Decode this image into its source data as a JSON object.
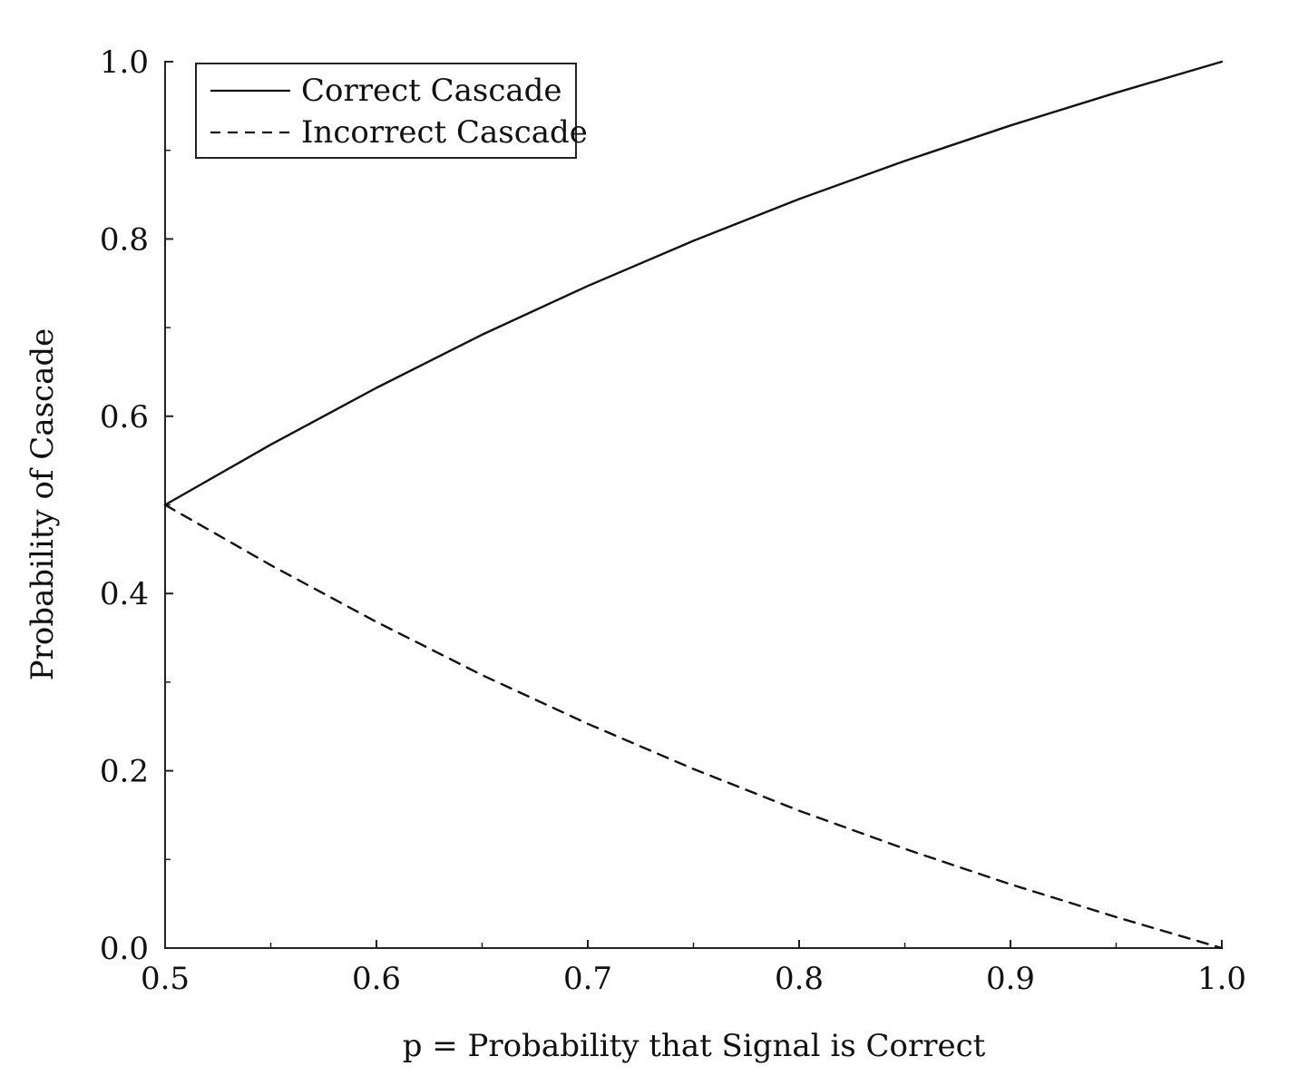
{
  "chart_data": {
    "type": "line",
    "title": "",
    "xlabel": "p = Probability that Signal is Correct",
    "ylabel": "Probability of Cascade",
    "xlim": [
      0.5,
      1.0
    ],
    "ylim": [
      0.0,
      1.0
    ],
    "x_ticks": [
      "0.5",
      "0.6",
      "0.7",
      "0.8",
      "0.9",
      "1.0"
    ],
    "y_ticks": [
      "0.0",
      "0.2",
      "0.4",
      "0.6",
      "0.8",
      "1.0"
    ],
    "grid": false,
    "legend_position": "top-left",
    "x": [
      0.5,
      0.55,
      0.6,
      0.65,
      0.7,
      0.75,
      0.8,
      0.85,
      0.9,
      0.95,
      1.0
    ],
    "series": [
      {
        "name": "Correct Cascade",
        "style": "solid",
        "values": [
          0.5,
          0.568,
          0.632,
          0.692,
          0.747,
          0.798,
          0.845,
          0.888,
          0.928,
          0.965,
          1.0
        ]
      },
      {
        "name": "Incorrect Cascade",
        "style": "dashed",
        "values": [
          0.5,
          0.432,
          0.368,
          0.308,
          0.253,
          0.202,
          0.155,
          0.112,
          0.072,
          0.035,
          0.0
        ]
      }
    ],
    "colors": {
      "line": "#111111",
      "axis": "#222222",
      "background": "#ffffff"
    }
  }
}
